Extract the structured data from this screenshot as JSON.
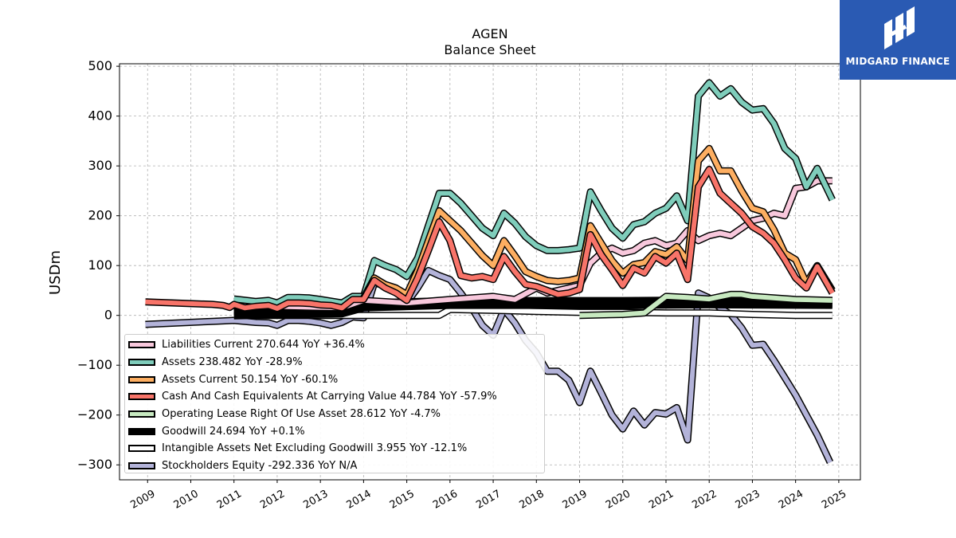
{
  "logo": {
    "text": "MIDGARD FINANCE",
    "color": "#2a5ab3"
  },
  "chart_data": {
    "type": "line",
    "title": "AGEN",
    "subtitle": "Balance  Sheet",
    "ylabel": "USDm",
    "xlabel": "",
    "ylim": [
      -330,
      505
    ],
    "xlim": [
      2008.35,
      2025.5
    ],
    "grid": true,
    "legend_position": "lower-left",
    "x_ticks": [
      "2009",
      "2010",
      "2011",
      "2012",
      "2013",
      "2014",
      "2015",
      "2016",
      "2017",
      "2018",
      "2019",
      "2020",
      "2021",
      "2022",
      "2023",
      "2024",
      "2025"
    ],
    "y_ticks": [
      "500",
      "400",
      "300",
      "200",
      "100",
      "0",
      "−100",
      "−200",
      "−300"
    ],
    "series": [
      {
        "name": "Stockholders Equity",
        "legend": "Stockholders Equity  -292.336 YoY N/A",
        "color": "#b3b3d9",
        "width": 6,
        "points": [
          [
            2008.95,
            -18
          ],
          [
            2010.5,
            -12
          ],
          [
            2011.0,
            -10
          ],
          [
            2011.5,
            -14
          ],
          [
            2011.8,
            -15
          ],
          [
            2012.0,
            -20
          ],
          [
            2012.25,
            -10
          ],
          [
            2012.5,
            -10
          ],
          [
            2012.75,
            -12
          ],
          [
            2013.0,
            -15
          ],
          [
            2013.25,
            -20
          ],
          [
            2013.5,
            -14
          ],
          [
            2013.75,
            -3
          ],
          [
            2014.0,
            -5
          ],
          [
            2014.25,
            65
          ],
          [
            2014.5,
            60
          ],
          [
            2014.75,
            50
          ],
          [
            2015.0,
            25
          ],
          [
            2015.25,
            55
          ],
          [
            2015.5,
            90
          ],
          [
            2015.75,
            80
          ],
          [
            2016.0,
            72
          ],
          [
            2016.25,
            45
          ],
          [
            2016.5,
            15
          ],
          [
            2016.75,
            -20
          ],
          [
            2017.0,
            -40
          ],
          [
            2017.25,
            12
          ],
          [
            2017.5,
            -15
          ],
          [
            2017.75,
            -50
          ],
          [
            2018.0,
            -75
          ],
          [
            2018.25,
            -112
          ],
          [
            2018.5,
            -112
          ],
          [
            2018.75,
            -130
          ],
          [
            2019.0,
            -175
          ],
          [
            2019.25,
            -112
          ],
          [
            2019.5,
            -155
          ],
          [
            2019.75,
            -200
          ],
          [
            2020.0,
            -228
          ],
          [
            2020.25,
            -192
          ],
          [
            2020.5,
            -220
          ],
          [
            2020.75,
            -195
          ],
          [
            2021.0,
            -198
          ],
          [
            2021.25,
            -185
          ],
          [
            2021.5,
            -250
          ],
          [
            2021.75,
            45
          ],
          [
            2022.0,
            35
          ],
          [
            2022.25,
            15
          ],
          [
            2022.5,
            2
          ],
          [
            2022.75,
            -25
          ],
          [
            2023.0,
            -60
          ],
          [
            2023.25,
            -58
          ],
          [
            2023.5,
            -90
          ],
          [
            2023.75,
            -125
          ],
          [
            2024.0,
            -160
          ],
          [
            2024.25,
            -200
          ],
          [
            2024.5,
            -240
          ],
          [
            2024.8,
            -295
          ]
        ]
      },
      {
        "name": "Intangible Assets Net Excluding Goodwill",
        "legend": "Intangible Assets Net Excluding Goodwill  3.955 YoY -12.1%",
        "color": "#ffffff",
        "width": 6,
        "points": [
          [
            2011.0,
            0
          ],
          [
            2014.0,
            0
          ],
          [
            2015.75,
            0
          ],
          [
            2016.0,
            12
          ],
          [
            2017.0,
            10
          ],
          [
            2018.0,
            8
          ],
          [
            2019.0,
            6
          ],
          [
            2020.0,
            6
          ],
          [
            2021.0,
            5
          ],
          [
            2022.0,
            5
          ],
          [
            2023.0,
            2
          ],
          [
            2024.0,
            0
          ],
          [
            2024.85,
            0
          ]
        ]
      },
      {
        "name": "Goodwill",
        "legend": "Goodwill  24.694 YoY +0.1%",
        "color": "#000000",
        "width": 12,
        "points": [
          [
            2011.0,
            4
          ],
          [
            2013.5,
            8
          ],
          [
            2014.0,
            20
          ],
          [
            2016.0,
            25
          ],
          [
            2018.0,
            25
          ],
          [
            2020.0,
            25
          ],
          [
            2022.0,
            26
          ],
          [
            2024.85,
            25
          ]
        ]
      },
      {
        "name": "Operating Lease Right Of Use Asset",
        "legend": "Operating Lease Right Of Use Asset  28.612 YoY -4.7%",
        "color": "#c7e9c0",
        "width": 6,
        "points": [
          [
            2019.0,
            0
          ],
          [
            2020.0,
            2
          ],
          [
            2020.5,
            5
          ],
          [
            2021.0,
            38
          ],
          [
            2021.5,
            36
          ],
          [
            2022.0,
            33
          ],
          [
            2022.5,
            42
          ],
          [
            2022.75,
            42
          ],
          [
            2023.0,
            38
          ],
          [
            2024.0,
            32
          ],
          [
            2024.85,
            30
          ]
        ]
      },
      {
        "name": "Liabilities Current",
        "legend": "Liabilities Current  270.644 YoY +36.4%",
        "color": "#f8c8dc",
        "width": 6,
        "points": [
          [
            2011.0,
            20
          ],
          [
            2013.5,
            15
          ],
          [
            2014.0,
            30
          ],
          [
            2015.0,
            25
          ],
          [
            2016.0,
            32
          ],
          [
            2017.0,
            38
          ],
          [
            2017.5,
            32
          ],
          [
            2018.0,
            55
          ],
          [
            2018.25,
            45
          ],
          [
            2018.5,
            50
          ],
          [
            2018.75,
            55
          ],
          [
            2019.0,
            60
          ],
          [
            2019.25,
            105
          ],
          [
            2019.5,
            125
          ],
          [
            2019.75,
            135
          ],
          [
            2020.0,
            125
          ],
          [
            2020.25,
            130
          ],
          [
            2020.5,
            145
          ],
          [
            2020.75,
            150
          ],
          [
            2021.0,
            140
          ],
          [
            2021.25,
            145
          ],
          [
            2021.5,
            170
          ],
          [
            2021.75,
            150
          ],
          [
            2022.0,
            160
          ],
          [
            2022.25,
            165
          ],
          [
            2022.5,
            160
          ],
          [
            2022.75,
            175
          ],
          [
            2023.0,
            190
          ],
          [
            2023.25,
            195
          ],
          [
            2023.5,
            205
          ],
          [
            2023.75,
            200
          ],
          [
            2024.0,
            255
          ],
          [
            2024.25,
            258
          ],
          [
            2024.5,
            270
          ],
          [
            2024.85,
            270
          ]
        ]
      },
      {
        "name": "Assets",
        "legend": "Assets  238.482 YoY -28.9%",
        "color": "#7fcdbb",
        "width": 6,
        "points": [
          [
            2011.0,
            33
          ],
          [
            2011.5,
            28
          ],
          [
            2011.8,
            30
          ],
          [
            2012.0,
            25
          ],
          [
            2012.25,
            36
          ],
          [
            2012.5,
            36
          ],
          [
            2012.75,
            35
          ],
          [
            2013.0,
            32
          ],
          [
            2013.5,
            25
          ],
          [
            2013.75,
            38
          ],
          [
            2014.0,
            38
          ],
          [
            2014.25,
            110
          ],
          [
            2014.5,
            100
          ],
          [
            2014.75,
            92
          ],
          [
            2015.0,
            78
          ],
          [
            2015.25,
            115
          ],
          [
            2015.5,
            180
          ],
          [
            2015.75,
            245
          ],
          [
            2016.0,
            245
          ],
          [
            2016.25,
            225
          ],
          [
            2016.5,
            200
          ],
          [
            2016.75,
            175
          ],
          [
            2017.0,
            160
          ],
          [
            2017.25,
            205
          ],
          [
            2017.5,
            185
          ],
          [
            2017.75,
            158
          ],
          [
            2018.0,
            140
          ],
          [
            2018.25,
            130
          ],
          [
            2018.5,
            130
          ],
          [
            2018.75,
            132
          ],
          [
            2019.0,
            135
          ],
          [
            2019.25,
            248
          ],
          [
            2019.5,
            210
          ],
          [
            2019.75,
            175
          ],
          [
            2020.0,
            155
          ],
          [
            2020.25,
            182
          ],
          [
            2020.5,
            188
          ],
          [
            2020.75,
            205
          ],
          [
            2021.0,
            215
          ],
          [
            2021.25,
            240
          ],
          [
            2021.5,
            190
          ],
          [
            2021.75,
            440
          ],
          [
            2022.0,
            467
          ],
          [
            2022.25,
            440
          ],
          [
            2022.5,
            455
          ],
          [
            2022.75,
            428
          ],
          [
            2023.0,
            412
          ],
          [
            2023.25,
            415
          ],
          [
            2023.5,
            385
          ],
          [
            2023.75,
            335
          ],
          [
            2024.0,
            315
          ],
          [
            2024.25,
            258
          ],
          [
            2024.5,
            295
          ],
          [
            2024.85,
            232
          ]
        ]
      },
      {
        "name": "Assets Current",
        "legend": "Assets Current  50.154 YoY -60.1%",
        "color": "#fdae61",
        "width": 6,
        "points": [
          [
            2014.0,
            35
          ],
          [
            2014.25,
            75
          ],
          [
            2014.5,
            62
          ],
          [
            2014.75,
            55
          ],
          [
            2015.0,
            42
          ],
          [
            2015.25,
            90
          ],
          [
            2015.5,
            150
          ],
          [
            2015.75,
            210
          ],
          [
            2016.0,
            190
          ],
          [
            2016.25,
            170
          ],
          [
            2016.5,
            145
          ],
          [
            2016.75,
            120
          ],
          [
            2017.0,
            100
          ],
          [
            2017.25,
            150
          ],
          [
            2017.5,
            120
          ],
          [
            2017.75,
            88
          ],
          [
            2018.0,
            78
          ],
          [
            2018.25,
            70
          ],
          [
            2018.5,
            68
          ],
          [
            2018.75,
            70
          ],
          [
            2019.0,
            75
          ],
          [
            2019.25,
            180
          ],
          [
            2019.5,
            145
          ],
          [
            2019.75,
            110
          ],
          [
            2020.0,
            85
          ],
          [
            2020.25,
            102
          ],
          [
            2020.5,
            106
          ],
          [
            2020.75,
            128
          ],
          [
            2021.0,
            122
          ],
          [
            2021.25,
            138
          ],
          [
            2021.5,
            110
          ],
          [
            2021.75,
            310
          ],
          [
            2022.0,
            335
          ],
          [
            2022.25,
            290
          ],
          [
            2022.5,
            290
          ],
          [
            2022.75,
            250
          ],
          [
            2023.0,
            215
          ],
          [
            2023.25,
            208
          ],
          [
            2023.5,
            172
          ],
          [
            2023.75,
            125
          ],
          [
            2024.0,
            112
          ],
          [
            2024.25,
            65
          ],
          [
            2024.5,
            100
          ],
          [
            2024.85,
            50
          ]
        ]
      },
      {
        "name": "Cash And Cash Equivalents At Carrying Value",
        "legend": "Cash And Cash Equivalents At Carrying Value  44.784 YoY -57.9%",
        "color": "#f87469",
        "width": 6,
        "points": [
          [
            2008.95,
            27
          ],
          [
            2010.5,
            22
          ],
          [
            2010.75,
            20
          ],
          [
            2010.9,
            16
          ],
          [
            2011.0,
            22
          ],
          [
            2011.25,
            15
          ],
          [
            2011.5,
            18
          ],
          [
            2011.8,
            20
          ],
          [
            2012.0,
            14
          ],
          [
            2012.25,
            25
          ],
          [
            2012.5,
            25
          ],
          [
            2012.75,
            24
          ],
          [
            2013.0,
            21
          ],
          [
            2013.25,
            20
          ],
          [
            2013.5,
            15
          ],
          [
            2013.75,
            32
          ],
          [
            2014.0,
            32
          ],
          [
            2014.25,
            70
          ],
          [
            2014.5,
            55
          ],
          [
            2014.75,
            45
          ],
          [
            2015.0,
            30
          ],
          [
            2015.25,
            75
          ],
          [
            2015.5,
            130
          ],
          [
            2015.75,
            188
          ],
          [
            2016.0,
            150
          ],
          [
            2016.25,
            80
          ],
          [
            2016.5,
            75
          ],
          [
            2016.75,
            78
          ],
          [
            2017.0,
            72
          ],
          [
            2017.25,
            118
          ],
          [
            2017.5,
            88
          ],
          [
            2017.75,
            62
          ],
          [
            2018.0,
            58
          ],
          [
            2018.25,
            50
          ],
          [
            2018.5,
            42
          ],
          [
            2018.75,
            45
          ],
          [
            2019.0,
            52
          ],
          [
            2019.25,
            162
          ],
          [
            2019.5,
            122
          ],
          [
            2019.75,
            92
          ],
          [
            2020.0,
            60
          ],
          [
            2020.25,
            95
          ],
          [
            2020.5,
            85
          ],
          [
            2020.75,
            118
          ],
          [
            2021.0,
            105
          ],
          [
            2021.25,
            125
          ],
          [
            2021.5,
            72
          ],
          [
            2021.75,
            258
          ],
          [
            2022.0,
            293
          ],
          [
            2022.25,
            245
          ],
          [
            2022.5,
            225
          ],
          [
            2022.75,
            205
          ],
          [
            2023.0,
            178
          ],
          [
            2023.25,
            165
          ],
          [
            2023.5,
            145
          ],
          [
            2023.75,
            112
          ],
          [
            2024.0,
            75
          ],
          [
            2024.25,
            55
          ],
          [
            2024.5,
            98
          ],
          [
            2024.85,
            45
          ]
        ]
      }
    ],
    "legend_order": [
      "Liabilities Current",
      "Assets",
      "Assets Current",
      "Cash And Cash Equivalents At Carrying Value",
      "Operating Lease Right Of Use Asset",
      "Goodwill",
      "Intangible Assets Net Excluding Goodwill",
      "Stockholders Equity"
    ]
  }
}
